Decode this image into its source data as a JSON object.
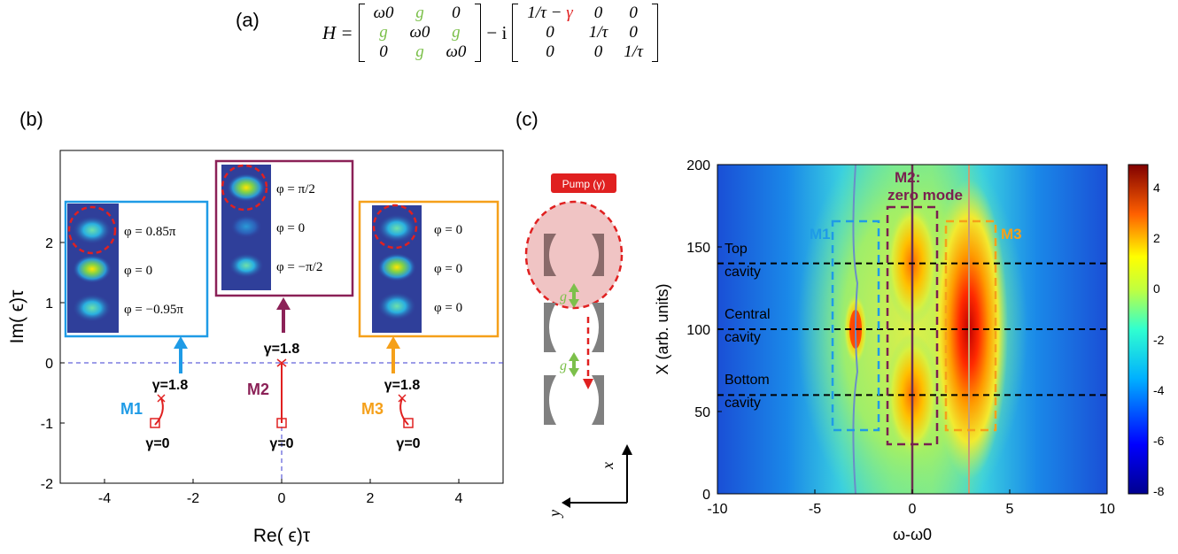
{
  "panel_a": {
    "label": "(a)",
    "lhs": "H =",
    "minus_i": "− i",
    "matrix1": [
      [
        "ω0",
        "g",
        "0"
      ],
      [
        "g",
        "ω0",
        "g"
      ],
      [
        "0",
        "g",
        "ω0"
      ]
    ],
    "matrix2": [
      [
        "1/τ − γ",
        "0",
        "0"
      ],
      [
        "0",
        "1/τ",
        "0"
      ],
      [
        "0",
        "0",
        "1/τ"
      ]
    ]
  },
  "panel_b": {
    "label": "(b)",
    "xlabel": "Re( ϵ)τ",
    "ylabel": "Im( ϵ)τ",
    "xlim": [
      -5,
      5
    ],
    "ylim": [
      -2,
      3.2
    ],
    "xticks": [
      "-4",
      "-2",
      "0",
      "2",
      "4"
    ],
    "yticks": [
      "-2",
      "-1",
      "0",
      "1",
      "2"
    ],
    "modes": [
      {
        "name": "M1",
        "color": "#1f9be6",
        "gamma_start": "γ=0",
        "gamma_end": "γ=1.8",
        "phases": [
          "φ = 0.85π",
          "φ = 0",
          "φ = −0.95π"
        ]
      },
      {
        "name": "M2",
        "color": "#8b2157",
        "gamma_start": "γ=0",
        "gamma_end": "γ=1.8",
        "phases": [
          "φ = π/2",
          "φ = 0",
          "φ = −π/2"
        ]
      },
      {
        "name": "M3",
        "color": "#f5a01a",
        "gamma_start": "γ=0",
        "gamma_end": "γ=1.8",
        "phases": [
          "φ = 0",
          "φ = 0",
          "φ = 0"
        ]
      }
    ]
  },
  "panel_c": {
    "label": "(c)",
    "pump_label": "Pump (γ)",
    "coupling_label": "g",
    "axis_x": "x",
    "axis_y": "y",
    "heatmap": {
      "xlabel": "ω-ω0",
      "ylabel": "X (arb. units)",
      "xlim": [
        -10,
        10
      ],
      "ylim": [
        0,
        200
      ],
      "xticks": [
        "-10",
        "-5",
        "0",
        "5",
        "10"
      ],
      "yticks": [
        "0",
        "50",
        "100",
        "150",
        "200"
      ],
      "colorbar_ticks": [
        "4",
        "2",
        "0",
        "-2",
        "-4",
        "-6",
        "-8"
      ],
      "colorbar_range": [
        -8,
        5
      ],
      "cavity_labels": [
        [
          "Top",
          "cavity"
        ],
        [
          "Central",
          "cavity"
        ],
        [
          "Bottom",
          "cavity"
        ]
      ],
      "cavity_lines_x": [
        140,
        100,
        60
      ],
      "mode_labels": {
        "m1": "M1",
        "m2a": "M2:",
        "m2b": "zero mode",
        "m3": "M3"
      }
    }
  }
}
